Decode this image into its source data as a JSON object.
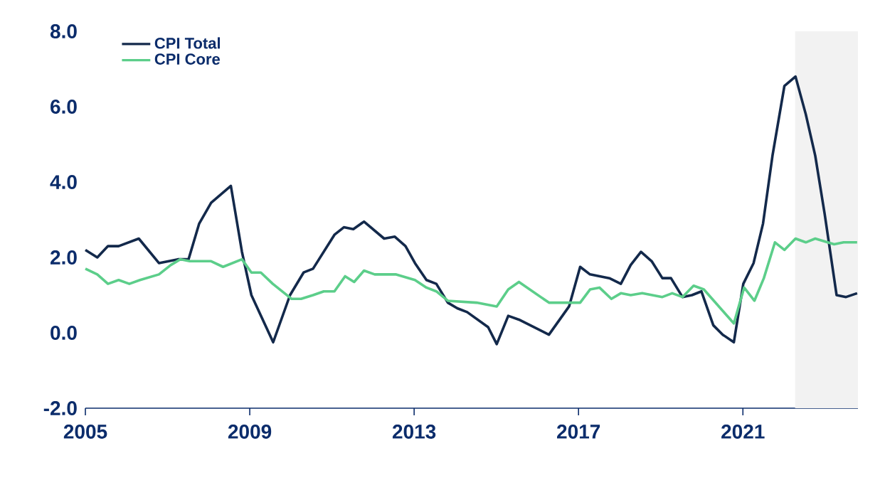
{
  "chart_data": {
    "type": "line",
    "xlim": [
      2005,
      2023.8
    ],
    "xticks": [
      2005,
      2009,
      2013,
      2017,
      2021
    ],
    "ylim": [
      -2,
      8
    ],
    "yticks": [
      {
        "value": -2,
        "label": "-2.0"
      },
      {
        "value": 0,
        "label": "0.0"
      },
      {
        "value": 2,
        "label": "2.0"
      },
      {
        "value": 4,
        "label": "4.0"
      },
      {
        "value": 6,
        "label": "6.0"
      },
      {
        "value": 8,
        "label": "8.0"
      }
    ],
    "legend": "top left",
    "grid": false,
    "line_style": "solid",
    "marker": "none",
    "bands": [
      {
        "axis": "x",
        "from": 2022.27,
        "to": 2023.8,
        "color": "#f2f2f2"
      }
    ],
    "series": [
      {
        "name": "CPI Total",
        "color": "#13294b",
        "x": [
          2005.0,
          2005.29,
          2005.55,
          2005.81,
          2006.3,
          2006.79,
          2007.25,
          2007.51,
          2007.77,
          2008.06,
          2008.54,
          2008.81,
          2009.04,
          2009.57,
          2009.98,
          2010.31,
          2010.54,
          2011.06,
          2011.29,
          2011.52,
          2011.78,
          2012.27,
          2012.53,
          2012.79,
          2013.02,
          2013.3,
          2013.54,
          2013.82,
          2014.05,
          2014.29,
          2014.8,
          2015.01,
          2015.29,
          2015.55,
          2016.28,
          2016.77,
          2017.04,
          2017.28,
          2017.75,
          2018.03,
          2018.27,
          2018.52,
          2018.78,
          2019.04,
          2019.25,
          2019.53,
          2019.76,
          2019.99,
          2020.28,
          2020.51,
          2020.78,
          2021.01,
          2021.26,
          2021.49,
          2021.72,
          2022.01,
          2022.28,
          2022.53,
          2022.76,
          2022.99,
          2023.28,
          2023.51,
          2023.78
        ],
        "values": [
          2.2,
          2.0,
          2.3,
          2.3,
          2.5,
          1.85,
          1.95,
          1.95,
          2.9,
          3.45,
          3.9,
          2.15,
          1.0,
          -0.25,
          1.0,
          1.6,
          1.7,
          2.6,
          2.8,
          2.75,
          2.95,
          2.5,
          2.55,
          2.3,
          1.85,
          1.4,
          1.3,
          0.8,
          0.65,
          0.55,
          0.15,
          -0.3,
          0.45,
          0.35,
          -0.05,
          0.7,
          1.75,
          1.55,
          1.45,
          1.3,
          1.8,
          2.15,
          1.9,
          1.45,
          1.45,
          0.95,
          1.0,
          1.1,
          0.2,
          -0.05,
          -0.25,
          1.3,
          1.85,
          2.9,
          4.7,
          6.55,
          6.8,
          5.8,
          4.7,
          3.15,
          1.0,
          0.95,
          1.05
        ]
      },
      {
        "name": "CPI Core",
        "color": "#5cce8a",
        "x": [
          2005.0,
          2005.29,
          2005.55,
          2005.81,
          2006.07,
          2006.33,
          2006.79,
          2007.08,
          2007.31,
          2007.54,
          2008.06,
          2008.35,
          2008.81,
          2009.04,
          2009.27,
          2009.56,
          2010.02,
          2010.25,
          2010.54,
          2010.8,
          2011.06,
          2011.32,
          2011.54,
          2011.78,
          2012.04,
          2012.55,
          2013.02,
          2013.3,
          2013.54,
          2013.82,
          2014.52,
          2015.01,
          2015.29,
          2015.55,
          2016.28,
          2016.53,
          2017.04,
          2017.28,
          2017.51,
          2017.8,
          2018.03,
          2018.27,
          2018.55,
          2019.04,
          2019.28,
          2019.53,
          2019.8,
          2020.05,
          2020.78,
          2021.03,
          2021.28,
          2021.51,
          2021.78,
          2022.01,
          2022.28,
          2022.53,
          2022.76,
          2023.22,
          2023.45,
          2023.78
        ],
        "values": [
          1.7,
          1.55,
          1.3,
          1.4,
          1.3,
          1.4,
          1.55,
          1.8,
          1.95,
          1.9,
          1.9,
          1.75,
          1.95,
          1.6,
          1.6,
          1.3,
          0.9,
          0.9,
          1.0,
          1.1,
          1.1,
          1.5,
          1.35,
          1.65,
          1.55,
          1.55,
          1.4,
          1.2,
          1.1,
          0.85,
          0.8,
          0.7,
          1.15,
          1.35,
          0.8,
          0.8,
          0.8,
          1.15,
          1.2,
          0.9,
          1.05,
          1.0,
          1.05,
          0.95,
          1.05,
          0.95,
          1.25,
          1.15,
          0.25,
          1.2,
          0.85,
          1.45,
          2.4,
          2.2,
          2.5,
          2.4,
          2.5,
          2.35,
          2.4,
          2.4
        ]
      }
    ]
  }
}
